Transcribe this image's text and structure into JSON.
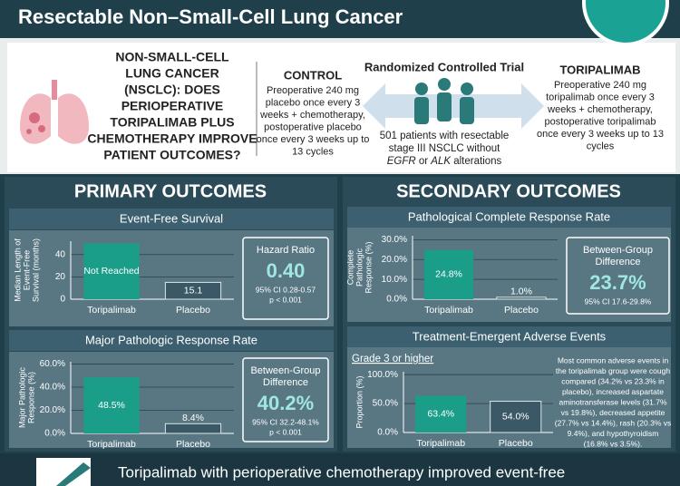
{
  "header": {
    "title": "Resectable Non–Small-Cell Lung Cancer"
  },
  "question": [
    "NON-SMALL-CELL",
    "LUNG CANCER",
    "(NSCLC): DOES",
    "PERIOPERATIVE",
    "TORIPALIMAB PLUS",
    "CHEMOTHERAPY IMPROVE",
    "PATIENT OUTCOMES?"
  ],
  "control": {
    "title": "CONTROL",
    "lines": [
      "Preoperative 240 mg",
      "placebo once every 3",
      "weeks + chemotherapy,",
      "postoperative placebo",
      "once every 3 weeks up to",
      "13 cycles"
    ]
  },
  "trial": {
    "title": "Randomized Controlled Trial",
    "lines": [
      "501 patients with resectable",
      "stage III NSCLC without"
    ],
    "last": [
      "EGFR",
      " or ",
      "ALK",
      " alterations"
    ]
  },
  "treatment": {
    "title": "TORIPALIMAB",
    "lines": [
      "Preoperative 240 mg",
      "toripalimab once every 3",
      "weeks + chemotherapy,",
      "postoperative toripalimab",
      "once every 3 weeks up to 13",
      "cycles"
    ]
  },
  "sections": [
    "PRIMARY OUTCOMES",
    "SECONDARY OUTCOMES"
  ],
  "chart_data": [
    {
      "type": "bar",
      "title": "Event-Free Survival",
      "categories": [
        "Toripalimab",
        "Placebo"
      ],
      "values": [
        50,
        15.1
      ],
      "value_labels": [
        "Not Reached",
        "15.1"
      ],
      "colors": [
        "#1a9e8a",
        "#3b5866"
      ],
      "ylabel": [
        "Median Length of",
        "Event-Free",
        "Survival (months)"
      ],
      "ylim": [
        0,
        52
      ],
      "yticks": [
        0,
        20,
        40
      ],
      "grid": true,
      "stat": {
        "label": [
          "Hazard Ratio"
        ],
        "value": "0.40",
        "ci": "95% CI 0.28-0.57",
        "p": "p < 0.001"
      }
    },
    {
      "type": "bar",
      "title": "Major Pathologic Response Rate",
      "categories": [
        "Toripalimab",
        "Placebo"
      ],
      "values": [
        48.5,
        8.4
      ],
      "value_labels": [
        "48.5%",
        "8.4%"
      ],
      "colors": [
        "#1a9e8a",
        "#3b5866"
      ],
      "ylabel": [
        "Major Pathologic",
        "Response (%)"
      ],
      "ylim": [
        0,
        62
      ],
      "yticks": [
        {
          "value": 0,
          "label": "0.0%"
        },
        {
          "value": 20,
          "label": "20.0%"
        },
        {
          "value": 40,
          "label": "40.0%"
        },
        {
          "value": 60,
          "label": "60.0%"
        }
      ],
      "grid": true,
      "stat": {
        "label": [
          "Between-Group",
          "Difference"
        ],
        "value": "40.2%",
        "ci": "95% CI 32.2-48.1%",
        "p": "p < 0.001"
      }
    },
    {
      "type": "bar",
      "title": "Pathological Complete Response Rate",
      "categories": [
        "Toripalimab",
        "Placebo"
      ],
      "values": [
        24.8,
        1.0
      ],
      "value_labels": [
        "24.8%",
        "1.0%"
      ],
      "colors": [
        "#1a9e8a",
        "#3b5866"
      ],
      "ylabel": [
        "Complete",
        "Pathologic",
        "Response (%)"
      ],
      "ylim": [
        0,
        32
      ],
      "yticks": [
        {
          "value": 0,
          "label": "0.0%"
        },
        {
          "value": 10,
          "label": "10.0%"
        },
        {
          "value": 20,
          "label": "20.0%"
        },
        {
          "value": 30,
          "label": "30.0%"
        }
      ],
      "grid": true,
      "stat": {
        "label": [
          "Between-Group",
          "Difference"
        ],
        "value": "23.7%",
        "ci": "95% CI 17.6-29.8%"
      }
    },
    {
      "type": "bar",
      "title": "Treatment-Emergent Adverse Events",
      "subtitle": "Grade 3 or higher",
      "categories": [
        "Toripalimab",
        "Placebo"
      ],
      "values": [
        63.4,
        54.0
      ],
      "value_labels": [
        "63.4%",
        "54.0%"
      ],
      "colors": [
        "#1a9e8a",
        "#3b5866"
      ],
      "ylabel": [
        "Proportion (%)"
      ],
      "ylim": [
        0,
        105
      ],
      "yticks": [
        {
          "value": 0,
          "label": "0.0%"
        },
        {
          "value": 50,
          "label": "50.0%"
        },
        {
          "value": 100,
          "label": "100.0%"
        }
      ],
      "grid": true,
      "note": [
        "Most common adverse events in",
        "the toripalimab group were cough",
        "compared (34.2% vs 23.3% in",
        "placebo), increased aspartate",
        "aminotransferase levels (31.7%",
        "vs 19.8%), decreased appetite",
        "(27.7% vs 14.4%), rash (20.3% vs",
        "9.4%), and hypothyroidism",
        "(16.8% vs 3.5%)."
      ]
    }
  ],
  "footer": "Toripalimab with perioperative chemotherapy improved event-free"
}
